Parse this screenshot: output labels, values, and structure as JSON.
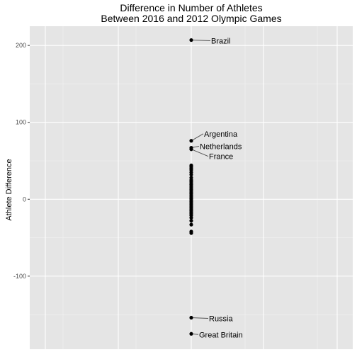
{
  "chart_data": {
    "type": "scatter",
    "title_lines": [
      "Difference in Number of Athletes",
      "Between 2016 and 2012 Olympic Games"
    ],
    "ylabel": "Athlete Difference",
    "xlabel": "",
    "ylim": [
      -195,
      225
    ],
    "y_ticks": [
      200,
      100,
      0,
      -100
    ],
    "y_tick_labels": [
      "200",
      "100",
      "0",
      "-100"
    ],
    "grid": true,
    "points": [
      207,
      76,
      67,
      65,
      44,
      42,
      40,
      38,
      35,
      32,
      28,
      25,
      23,
      21,
      19,
      17,
      15,
      13,
      11,
      9,
      7,
      5,
      3,
      1,
      -1,
      -3,
      -5,
      -7,
      -9,
      -11,
      -13,
      -15,
      -17,
      -19,
      -21,
      -24,
      -28,
      -33,
      -42,
      -44,
      -154,
      -175
    ],
    "annotations": [
      {
        "label": "Brazil",
        "y": 207
      },
      {
        "label": "Argentina",
        "y": 76
      },
      {
        "label": "Netherlands",
        "y": 67
      },
      {
        "label": "France",
        "y": 65
      },
      {
        "label": "Russia",
        "y": -154
      },
      {
        "label": "Great Britain",
        "y": -175
      }
    ]
  }
}
